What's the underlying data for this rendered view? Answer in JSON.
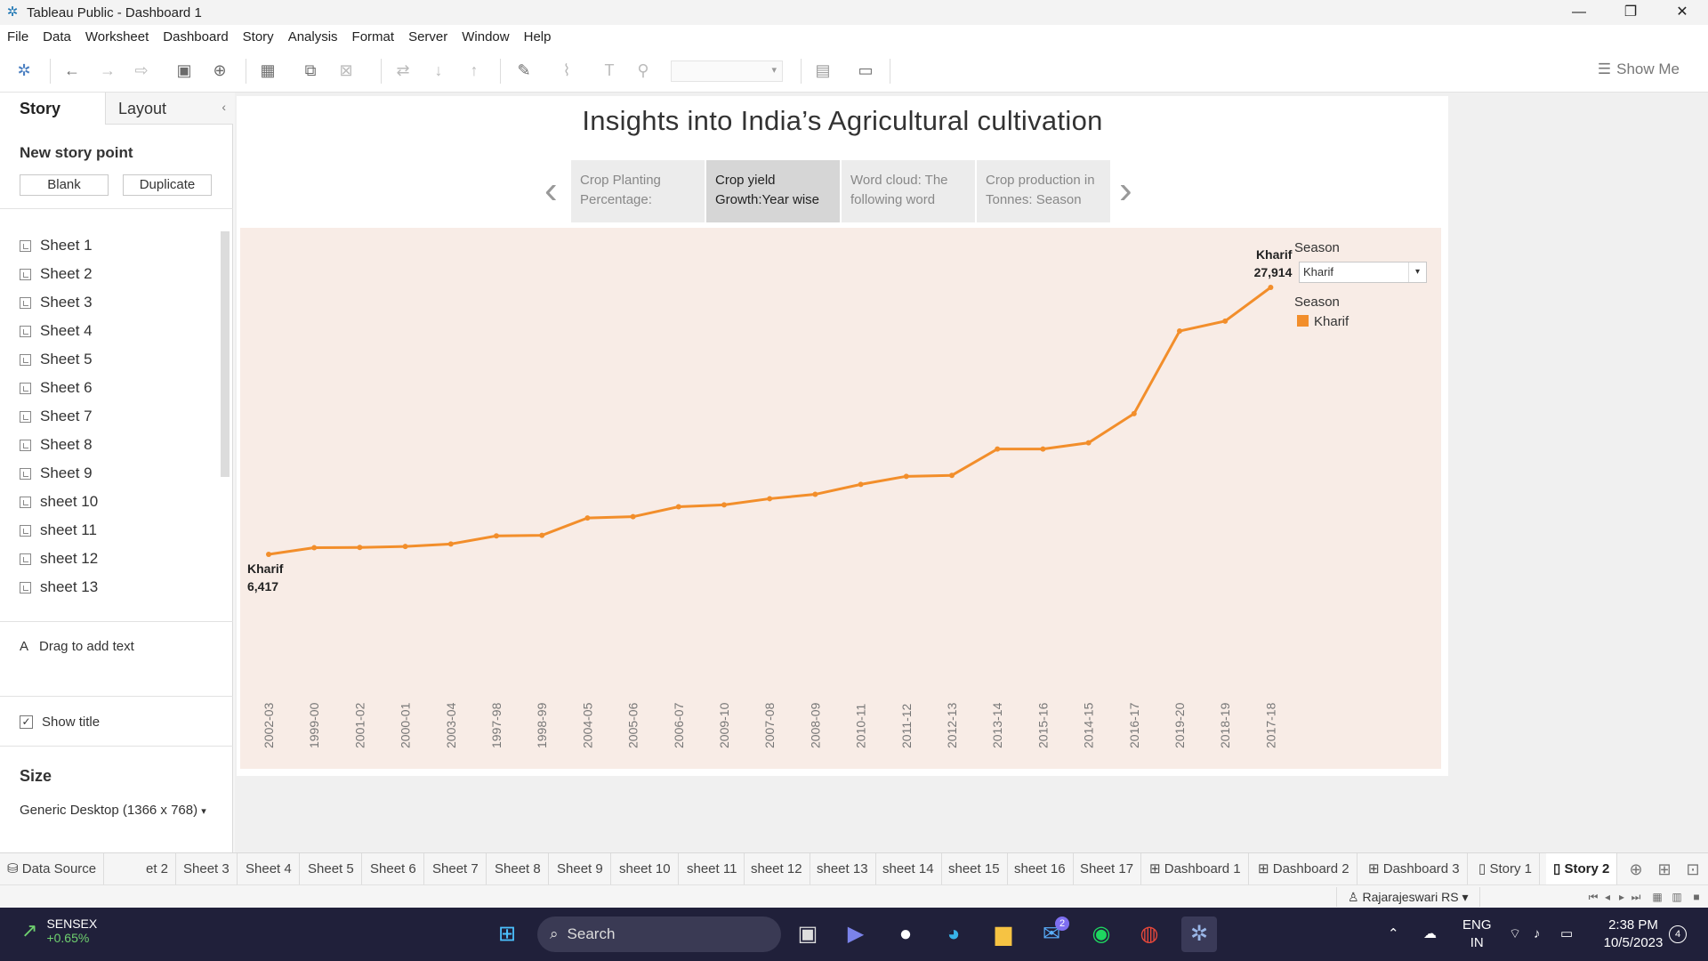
{
  "window": {
    "title": "Tableau Public - Dashboard 1"
  },
  "menu": [
    "File",
    "Data",
    "Worksheet",
    "Dashboard",
    "Story",
    "Analysis",
    "Format",
    "Server",
    "Window",
    "Help"
  ],
  "toolbar": {
    "show_me": "Show Me"
  },
  "left_pane": {
    "tab_story": "Story",
    "tab_layout": "Layout",
    "new_story_point": "New story point",
    "blank_btn": "Blank",
    "duplicate_btn": "Duplicate",
    "sheets": [
      "Sheet 1",
      "Sheet 2",
      "Sheet 3",
      "Sheet 4",
      "Sheet 5",
      "Sheet 6",
      "Sheet 7",
      "Sheet 8",
      "Sheet 9",
      "sheet 10",
      "sheet 11",
      "sheet 12",
      "sheet 13"
    ],
    "drag_text": "Drag to add text",
    "show_title": "Show title",
    "size_label": "Size",
    "size_value": "Generic Desktop (1366 x 768)"
  },
  "story": {
    "title": "Insights  into India’s Agricultural cultivation",
    "points": [
      {
        "line1": "Crop Planting",
        "line2": "Percentage:",
        "active": false
      },
      {
        "line1": "Crop yield",
        "line2": "Growth:Year wise",
        "active": true
      },
      {
        "line1": "Word cloud: The",
        "line2": "following word",
        "active": false
      },
      {
        "line1": "Crop production in",
        "line2": "Tonnes: Season",
        "active": false
      }
    ]
  },
  "filter": {
    "label": "Season",
    "value": "Kharif"
  },
  "legend": {
    "title": "Season",
    "item": "Kharif",
    "color": "#f28e2b"
  },
  "chart_data": {
    "type": "line",
    "categories": [
      "2002-03",
      "1999-00",
      "2001-02",
      "2000-01",
      "2003-04",
      "1997-98",
      "1998-99",
      "2004-05",
      "2005-06",
      "2006-07",
      "2009-10",
      "2007-08",
      "2008-09",
      "2010-11",
      "2011-12",
      "2012-13",
      "2013-14",
      "2015-16",
      "2014-15",
      "2016-17",
      "2019-20",
      "2018-19",
      "2017-18"
    ],
    "series": [
      {
        "name": "Kharif",
        "values": [
          6417,
          6950,
          6970,
          7050,
          7250,
          7900,
          7950,
          9350,
          9450,
          10250,
          10400,
          10900,
          11250,
          12050,
          12700,
          12780,
          14900,
          14900,
          15400,
          17750,
          24400,
          25200,
          27914
        ]
      }
    ],
    "labels": {
      "first": {
        "series": "Kharif",
        "value": "6,417"
      },
      "last": {
        "series": "Kharif",
        "value": "27,914"
      }
    },
    "color": "#f28e2b"
  },
  "bottom_tabs": [
    "Data Source",
    "et 2",
    "Sheet 3",
    "Sheet 4",
    "Sheet 5",
    "Sheet 6",
    "Sheet 7",
    "Sheet 8",
    "Sheet 9",
    "sheet 10",
    "sheet 11",
    "sheet 12",
    "sheet 13",
    "sheet 14",
    "sheet 15",
    "sheet 16",
    "Sheet 17",
    "Dashboard 1",
    "Dashboard 2",
    "Dashboard 3",
    "Story 1",
    "Story 2"
  ],
  "status": {
    "user": "Rajarajeswari RS"
  },
  "taskbar": {
    "ticker_name": "SENSEX",
    "ticker_value": "+0.65%",
    "search": "Search",
    "lang1": "ENG",
    "lang2": "IN",
    "time": "2:38 PM",
    "date": "10/5/2023",
    "mail_badge": "2",
    "notif_badge": "4"
  }
}
